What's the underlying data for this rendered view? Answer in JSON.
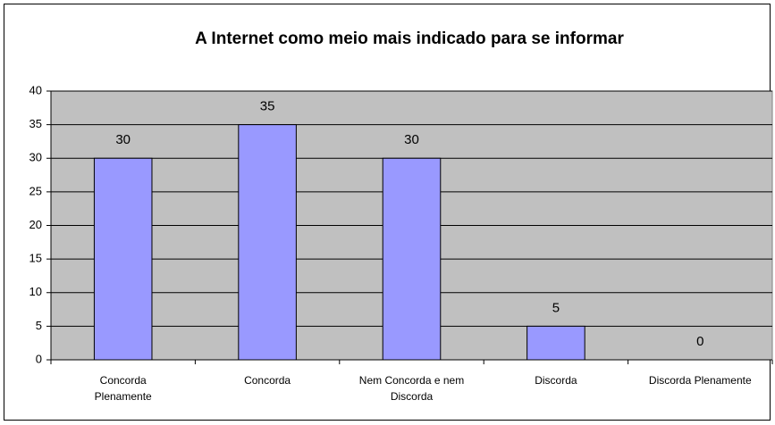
{
  "chart_data": {
    "type": "bar",
    "title": "A Internet como meio mais indicado para se informar",
    "categories": [
      "Concorda Plenamente",
      "Concorda",
      "Nem Concorda e nem Discorda",
      "Discorda",
      "Discorda Plenamente"
    ],
    "values": [
      30,
      35,
      30,
      5,
      0
    ],
    "color": "#9999ff",
    "ylim": [
      0,
      40
    ],
    "yticks": [
      0,
      5,
      10,
      15,
      20,
      25,
      30,
      35,
      40
    ],
    "grid": true
  }
}
